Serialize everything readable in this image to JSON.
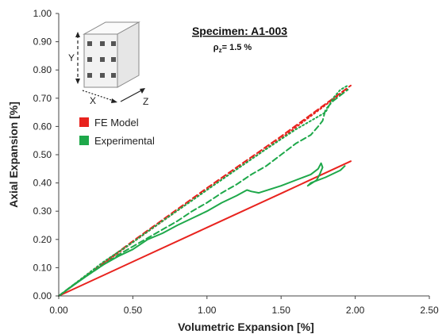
{
  "chart_data": {
    "type": "line",
    "title": "Specimen: A1-003",
    "subtitle_symbol": "ρ",
    "subtitle_subscript": "z",
    "subtitle_value": "= 1.5 %",
    "xlabel": "Volumetric Expansion [%]",
    "ylabel": "Axial Expansion [%]",
    "xlim": [
      0,
      2.5
    ],
    "ylim": [
      0,
      1.0
    ],
    "xticks": [
      "0.00",
      "0.50",
      "1.00",
      "1.50",
      "2.00",
      "2.50"
    ],
    "yticks": [
      "0.00",
      "0.10",
      "0.20",
      "0.30",
      "0.40",
      "0.50",
      "0.60",
      "0.70",
      "0.80",
      "0.90",
      "1.00"
    ],
    "grid": false,
    "legend": {
      "placement": "upper-left",
      "entries": [
        {
          "label": "FE Model",
          "color": "#e8231e"
        },
        {
          "label": "Experimental",
          "color": "#1ea84a"
        }
      ]
    },
    "inset_labels": {
      "x": "X",
      "y": "Y",
      "z": "Z"
    },
    "series": [
      {
        "group": "FE Model",
        "style": "solid",
        "color": "#e8231e",
        "x": [
          0,
          0.5,
          1.0,
          1.5,
          1.97
        ],
        "y": [
          0,
          0.121,
          0.242,
          0.363,
          0.477
        ]
      },
      {
        "group": "FE Model",
        "style": "dashed",
        "color": "#e8231e",
        "x": [
          0,
          0.5,
          1.0,
          1.5,
          1.97
        ],
        "y": [
          0,
          0.194,
          0.382,
          0.565,
          0.745
        ]
      },
      {
        "group": "FE Model",
        "style": "dotted",
        "color": "#e8231e",
        "x": [
          0,
          0.5,
          1.0,
          1.5,
          1.95
        ],
        "y": [
          0,
          0.19,
          0.376,
          0.558,
          0.735
        ]
      },
      {
        "group": "Experimental",
        "style": "solid",
        "color": "#1ea84a",
        "x": [
          0,
          0.1,
          0.2,
          0.3,
          0.4,
          0.5,
          0.6,
          0.7,
          0.8,
          0.9,
          1.0,
          1.1,
          1.2,
          1.27,
          1.3,
          1.35,
          1.5,
          1.6,
          1.7,
          1.75,
          1.77,
          1.78,
          1.76,
          1.74,
          1.68,
          1.7,
          1.8,
          1.9,
          1.93
        ],
        "y": [
          0,
          0.038,
          0.075,
          0.11,
          0.14,
          0.165,
          0.2,
          0.222,
          0.25,
          0.275,
          0.3,
          0.33,
          0.355,
          0.375,
          0.37,
          0.365,
          0.39,
          0.41,
          0.43,
          0.45,
          0.47,
          0.455,
          0.43,
          0.41,
          0.39,
          0.4,
          0.42,
          0.445,
          0.46
        ]
      },
      {
        "group": "Experimental",
        "style": "dashed",
        "color": "#1ea84a",
        "x": [
          0,
          0.1,
          0.2,
          0.3,
          0.4,
          0.5,
          0.6,
          0.7,
          0.8,
          0.9,
          1.0,
          1.1,
          1.2,
          1.3,
          1.4,
          1.5,
          1.6,
          1.7,
          1.75,
          1.78,
          1.8,
          1.85,
          1.9,
          1.95
        ],
        "y": [
          0,
          0.04,
          0.075,
          0.11,
          0.145,
          0.175,
          0.205,
          0.235,
          0.265,
          0.3,
          0.33,
          0.365,
          0.395,
          0.43,
          0.46,
          0.5,
          0.54,
          0.57,
          0.6,
          0.62,
          0.66,
          0.69,
          0.71,
          0.73
        ]
      },
      {
        "group": "Experimental",
        "style": "dotted",
        "color": "#1ea84a",
        "x": [
          0,
          0.1,
          0.2,
          0.3,
          0.4,
          0.5,
          0.6,
          0.7,
          0.8,
          0.9,
          1.0,
          1.2,
          1.4,
          1.6,
          1.7,
          1.8,
          1.85,
          1.9,
          1.95
        ],
        "y": [
          0,
          0.04,
          0.08,
          0.12,
          0.155,
          0.19,
          0.228,
          0.265,
          0.302,
          0.338,
          0.375,
          0.448,
          0.52,
          0.59,
          0.62,
          0.65,
          0.7,
          0.73,
          0.745
        ]
      }
    ]
  }
}
